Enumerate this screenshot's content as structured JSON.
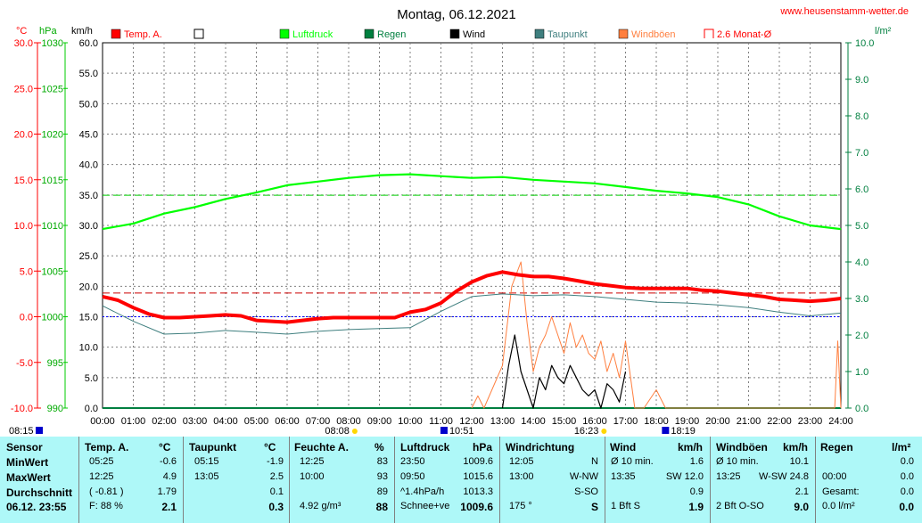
{
  "header": {
    "title": "Montag, 06.12.2021",
    "site": "www.heusenstamm-wetter.de"
  },
  "units": {
    "temp": "°C",
    "pressure": "hPa",
    "wind": "km/h",
    "rain": "l/m²"
  },
  "legend": [
    {
      "label": "Temp. A.",
      "color": "#ff0000",
      "style": "filled"
    },
    {
      "label": "",
      "color": "#000000",
      "style": "empty"
    },
    {
      "label": "Luftdruck",
      "color": "#00ff00",
      "style": "filled"
    },
    {
      "label": "Regen",
      "color": "#007f3f",
      "style": "filled"
    },
    {
      "label": "Wind",
      "color": "#000000",
      "style": "filled"
    },
    {
      "label": "Taupunkt",
      "color": "#3f7f7f",
      "style": "filled"
    },
    {
      "label": "Windböen",
      "color": "#ff7f3f",
      "style": "filled"
    },
    {
      "label": "2.6 Monat-Ø",
      "color": "#ff0000",
      "style": "bracket"
    }
  ],
  "chart_data": {
    "type": "line",
    "title": "Montag, 06.12.2021",
    "x_ticks": [
      "00:00",
      "01:00",
      "02:00",
      "03:00",
      "04:00",
      "05:00",
      "06:00",
      "07:00",
      "08:00",
      "09:00",
      "10:00",
      "11:00",
      "12:00",
      "13:00",
      "14:00",
      "15:00",
      "16:00",
      "17:00",
      "18:00",
      "19:00",
      "20:00",
      "21:00",
      "22:00",
      "23:00",
      "24:00"
    ],
    "x_range": [
      0,
      24
    ],
    "axes": {
      "temp_c": {
        "range": [
          -10,
          30
        ],
        "ticks": [
          "30.0",
          "25.0",
          "20.0",
          "15.0",
          "10.0",
          "5.0",
          "0.0",
          "-5.0",
          "-10.0"
        ]
      },
      "pressure_hpa": {
        "range": [
          990,
          1030
        ],
        "ticks": [
          "1030",
          "1025",
          "1020",
          "1015",
          "1010",
          "1005",
          "1000",
          "995",
          "990"
        ]
      },
      "wind_kmh": {
        "range": [
          0,
          60
        ],
        "ticks": [
          "60.0",
          "55.0",
          "50.0",
          "45.0",
          "40.0",
          "35.0",
          "30.0",
          "25.0",
          "20.0",
          "15.0",
          "10.0",
          "5.0",
          "0.0"
        ]
      },
      "rain_lm2": {
        "range": [
          0,
          10
        ],
        "ticks": [
          "10.0",
          "9.0",
          "8.0",
          "7.0",
          "6.0",
          "5.0",
          "4.0",
          "3.0",
          "2.0",
          "1.0",
          "0.0"
        ]
      }
    },
    "reference_lines": [
      {
        "name": "2.6 Monat-Ø",
        "axis": "temp_c",
        "value": 2.6,
        "color": "#cc0000"
      },
      {
        "name": "",
        "axis": "pressure_hpa",
        "value": 1013.3,
        "color": "#00cc00"
      },
      {
        "name": "",
        "axis": "temp_c",
        "value": 0.0,
        "color": "#0000ff"
      }
    ],
    "series": [
      {
        "name": "Temp. A.",
        "axis": "temp_c",
        "color": "#ff0000",
        "x": [
          0,
          0.5,
          1,
          1.5,
          2,
          2.5,
          3,
          3.5,
          4,
          4.5,
          5,
          5.5,
          6,
          6.5,
          7,
          7.5,
          8,
          8.5,
          9,
          9.5,
          10,
          10.5,
          11,
          11.5,
          12,
          12.5,
          13,
          13.5,
          14,
          14.5,
          15,
          15.5,
          16,
          16.5,
          17,
          17.5,
          18,
          18.5,
          19,
          19.5,
          20,
          20.5,
          21,
          21.5,
          22,
          22.5,
          23,
          23.5,
          24
        ],
        "y": [
          2.2,
          1.8,
          1.0,
          0.3,
          -0.1,
          -0.1,
          0.0,
          0.1,
          0.2,
          0.1,
          -0.4,
          -0.5,
          -0.6,
          -0.4,
          -0.2,
          -0.1,
          -0.1,
          -0.1,
          -0.1,
          -0.1,
          0.5,
          0.8,
          1.5,
          2.8,
          3.8,
          4.5,
          4.9,
          4.6,
          4.4,
          4.4,
          4.2,
          3.9,
          3.6,
          3.4,
          3.2,
          3.1,
          3.1,
          3.1,
          3.1,
          2.9,
          2.8,
          2.6,
          2.4,
          2.2,
          1.9,
          1.8,
          1.7,
          1.8,
          2.0
        ]
      },
      {
        "name": "Taupunkt",
        "axis": "temp_c",
        "color": "#3f7f7f",
        "x": [
          0,
          1,
          2,
          3,
          4,
          5,
          6,
          7,
          8,
          9,
          10,
          11,
          12,
          13,
          14,
          15,
          16,
          17,
          18,
          19,
          20,
          21,
          22,
          23,
          24
        ],
        "y": [
          1.2,
          -0.5,
          -1.9,
          -1.8,
          -1.5,
          -1.7,
          -1.9,
          -1.6,
          -1.4,
          -1.3,
          -1.2,
          0.6,
          2.2,
          2.5,
          2.3,
          2.4,
          2.2,
          1.9,
          1.6,
          1.5,
          1.3,
          1.0,
          0.5,
          0.1,
          0.4
        ]
      },
      {
        "name": "Luftdruck",
        "axis": "pressure_hpa",
        "color": "#00ff00",
        "x": [
          0,
          1,
          2,
          3,
          4,
          5,
          6,
          7,
          8,
          9,
          10,
          11,
          12,
          13,
          14,
          15,
          16,
          17,
          18,
          19,
          20,
          21,
          22,
          23,
          24
        ],
        "y": [
          1009.6,
          1010.2,
          1011.3,
          1012.0,
          1012.9,
          1013.6,
          1014.4,
          1014.8,
          1015.2,
          1015.5,
          1015.6,
          1015.4,
          1015.2,
          1015.3,
          1015.0,
          1014.8,
          1014.6,
          1014.2,
          1013.8,
          1013.5,
          1013.1,
          1012.3,
          1011.0,
          1010.0,
          1009.6
        ]
      },
      {
        "name": "Wind",
        "axis": "wind_kmh",
        "color": "#000000",
        "x": [
          13.0,
          13.2,
          13.4,
          13.6,
          13.8,
          14.0,
          14.2,
          14.4,
          14.6,
          14.8,
          15.0,
          15.2,
          15.4,
          15.6,
          15.8,
          16.0,
          16.2,
          16.4,
          16.6,
          16.8,
          17.0
        ],
        "y": [
          0,
          7,
          12,
          6,
          3,
          0,
          5,
          3,
          7,
          5,
          4,
          7,
          5,
          3,
          2,
          3,
          0,
          4,
          3,
          1,
          6
        ]
      },
      {
        "name": "Windböen",
        "axis": "wind_kmh",
        "color": "#ff7f3f",
        "x": [
          12.0,
          12.2,
          12.4,
          13.0,
          13.3,
          13.6,
          13.8,
          14.0,
          14.2,
          14.4,
          14.6,
          14.8,
          15.0,
          15.2,
          15.4,
          15.6,
          15.8,
          16.0,
          16.2,
          16.4,
          16.6,
          16.8,
          17.0,
          17.3,
          17.6,
          18.0,
          18.3,
          23.8,
          23.9,
          24.0
        ],
        "y": [
          0,
          2,
          0,
          7,
          20,
          24,
          14,
          6,
          10,
          12,
          15,
          12,
          9,
          14,
          10,
          12,
          9,
          8,
          11,
          6,
          9,
          5,
          11,
          0,
          0,
          3,
          0,
          0,
          11,
          0
        ]
      },
      {
        "name": "Regen",
        "axis": "rain_lm2",
        "color": "#007f3f",
        "x": [
          0,
          24
        ],
        "y": [
          0,
          0
        ]
      }
    ],
    "events": [
      {
        "label": "08:15",
        "x": 0,
        "row": 2
      },
      {
        "label": "08:08",
        "x": 8.2,
        "row": 1
      },
      {
        "label": "10:51",
        "x": 11.1,
        "row": 2
      },
      {
        "label": "16:23",
        "x": 16.3,
        "row": 1
      },
      {
        "label": "18:19",
        "x": 18.3,
        "row": 2
      }
    ]
  },
  "table": {
    "col_headers": [
      "Sensor",
      "Temp. A.",
      "°C",
      "Taupunkt",
      "°C",
      "Feuchte A.",
      "%",
      "Luftdruck",
      "hPa",
      "Windrichtung",
      "",
      "Wind",
      "km/h",
      "Windböen",
      "km/h",
      "Regen",
      "l/m²"
    ],
    "rows": [
      {
        "label": "MinWert",
        "temp_t": "05:25",
        "temp_v": "-0.6",
        "dew_t": "05:15",
        "dew_v": "-1.9",
        "hum_t": "12:25",
        "hum_v": "83",
        "pres_t": "23:50",
        "pres_v": "1009.6",
        "dir_t": "12:05",
        "dir_v": "N",
        "wind_t": "Ø 10 min.",
        "wind_v": "1.6",
        "gust_t": "Ø 10 min.",
        "gust_v": "10.1",
        "rain_t": "",
        "rain_v": "0.0"
      },
      {
        "label": "MaxWert",
        "temp_t": "12:25",
        "temp_v": "4.9",
        "dew_t": "13:05",
        "dew_v": "2.5",
        "hum_t": "10:00",
        "hum_v": "93",
        "pres_t": "09:50",
        "pres_v": "1015.6",
        "dir_t": "13:00",
        "dir_v": "W-NW",
        "wind_t": "13:35",
        "wind_v": "SW 12.0",
        "gust_t": "13:25",
        "gust_v": "W-SW 24.8",
        "rain_t": "00:00",
        "rain_v": "0.0"
      },
      {
        "label": "Durchschnitt",
        "temp_t": "( -0.81 )",
        "temp_v": "1.79",
        "dew_t": "",
        "dew_v": "0.1",
        "hum_t": "",
        "hum_v": "89",
        "pres_t": "^1.4hPa/h",
        "pres_v": "1013.3",
        "dir_t": "",
        "dir_v": "S-SO",
        "wind_t": "",
        "wind_v": "0.9",
        "gust_t": "",
        "gust_v": "2.1",
        "rain_t": "Gesamt:",
        "rain_v": "0.0"
      },
      {
        "label": "06.12. 23:55",
        "temp_t": "F: 88 %",
        "temp_v": "2.1",
        "dew_t": "",
        "dew_v": "0.3",
        "hum_t": "4.92 g/m³",
        "hum_v": "88",
        "pres_t": "Schnee+ve",
        "pres_v": "1009.6",
        "dir_t": "175 °",
        "dir_v": "S",
        "wind_t": "1 Bft S",
        "wind_v": "1.9",
        "gust_t": "2 Bft O-SO",
        "gust_v": "9.0",
        "rain_t": "0.0 l/m²",
        "rain_v": "0.0"
      }
    ]
  }
}
